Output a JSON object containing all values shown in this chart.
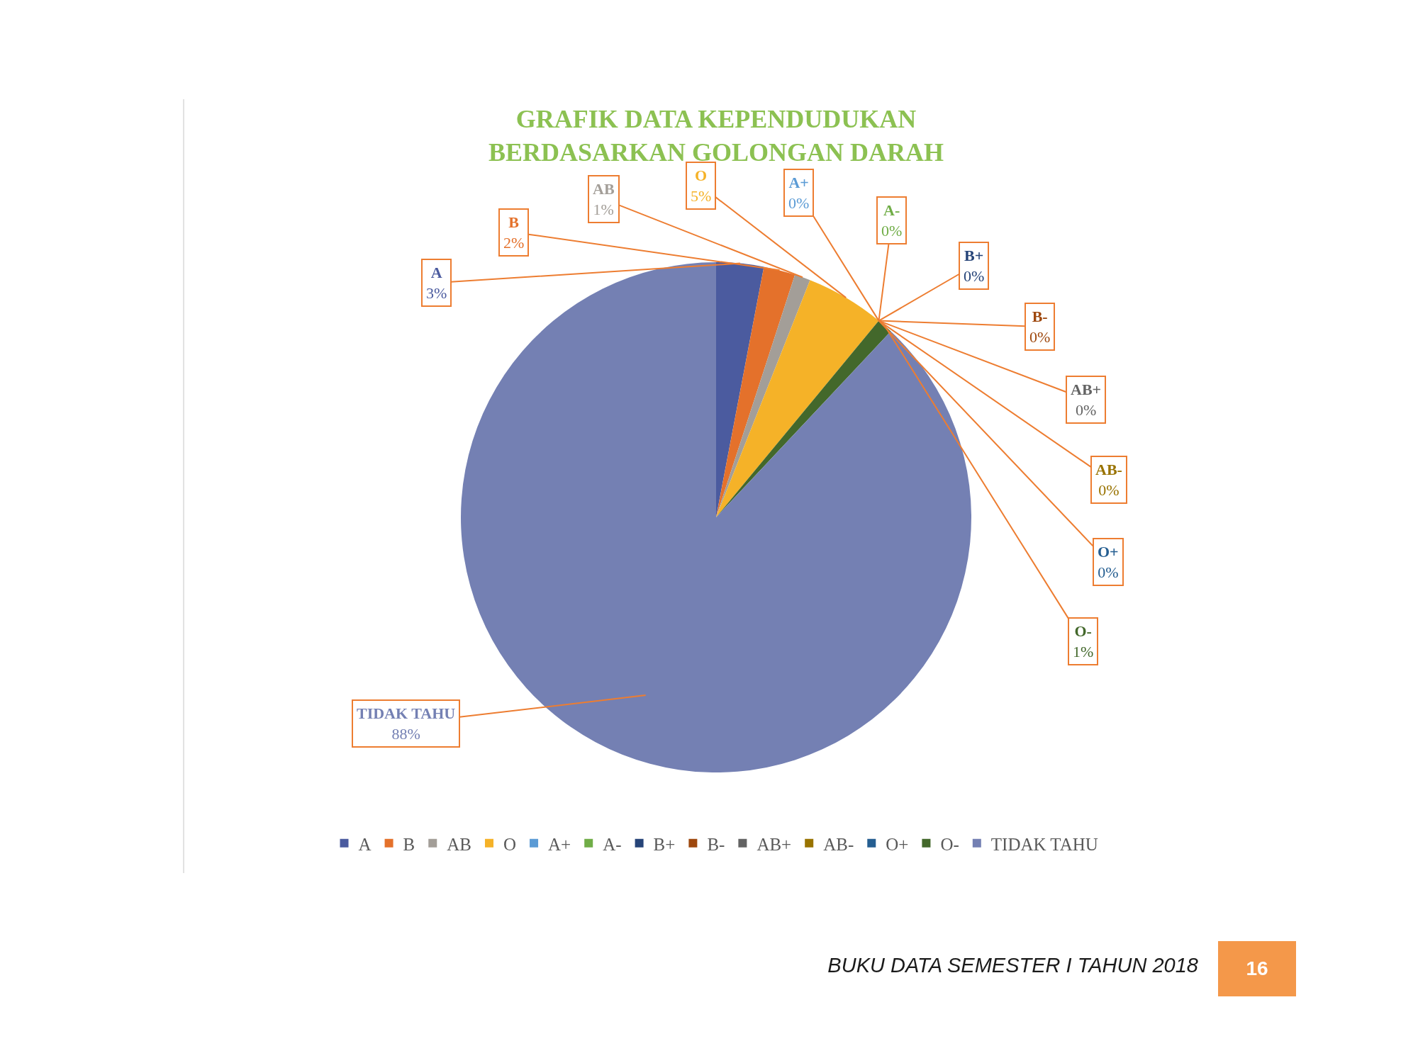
{
  "chart_data": {
    "type": "pie",
    "title": "GRAFIK DATA KEPENDUDUKAN BERDASARKAN GOLONGAN DARAH",
    "categories": [
      "A",
      "B",
      "AB",
      "O",
      "A+",
      "A-",
      "B+",
      "B-",
      "AB+",
      "AB-",
      "O+",
      "O-",
      "TIDAK TAHU"
    ],
    "values": [
      3,
      2,
      1,
      5,
      0,
      0,
      0,
      0,
      0,
      0,
      0,
      1,
      88
    ],
    "value_labels": [
      "3%",
      "2%",
      "1%",
      "5%",
      "0%",
      "0%",
      "0%",
      "0%",
      "0%",
      "0%",
      "0%",
      "1%",
      "88%"
    ],
    "colors": [
      "#4b5b9f",
      "#e4712b",
      "#a39e98",
      "#f5b228",
      "#5b9bd5",
      "#70ad47",
      "#264478",
      "#9e480e",
      "#636363",
      "#997300",
      "#255e91",
      "#43682b",
      "#7480b3"
    ],
    "legend": "bottom",
    "annotations": [
      "BUKU DATA SEMESTER I TAHUN 2018",
      "16"
    ]
  }
}
